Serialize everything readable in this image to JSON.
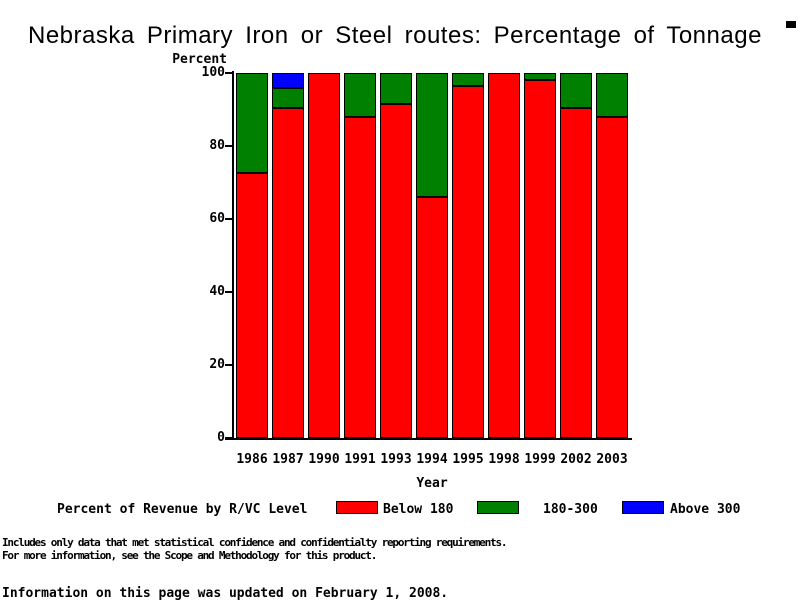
{
  "chart_data": {
    "type": "bar",
    "stacked": true,
    "title": "Nebraska Primary Iron or Steel routes: Percentage of Tonnage",
    "xlabel": "Year",
    "ylabel": "Percent",
    "ylim": [
      0,
      100
    ],
    "yticks": [
      0,
      20,
      40,
      60,
      80,
      100
    ],
    "grid": false,
    "legend_position": "bottom",
    "legend_title": "Percent of Revenue by R/VC Level",
    "categories": [
      "1986",
      "1987",
      "1990",
      "1991",
      "1993",
      "1994",
      "1995",
      "1998",
      "1999",
      "2002",
      "2003"
    ],
    "series": [
      {
        "name": "Below 180",
        "color": "#ff0000",
        "values": [
          72.5,
          90.5,
          100,
          88,
          91.5,
          66,
          96.5,
          100,
          98,
          90.5,
          88
        ]
      },
      {
        "name": "180-300",
        "color": "#008000",
        "values": [
          27.5,
          5.5,
          0,
          12,
          8.5,
          34,
          3.5,
          0,
          2,
          9.5,
          12
        ]
      },
      {
        "name": "Above 300",
        "color": "#0000ff",
        "values": [
          0,
          4,
          0,
          0,
          0,
          0,
          0,
          0,
          0,
          0,
          0
        ]
      }
    ]
  },
  "footer": {
    "note_line1": "Includes only data that met statistical confidence and confidentialty reporting requirements.",
    "note_line2": "For more information, see the Scope and Methodology for this product.",
    "updated": "Information on this page was updated on February 1, 2008."
  }
}
